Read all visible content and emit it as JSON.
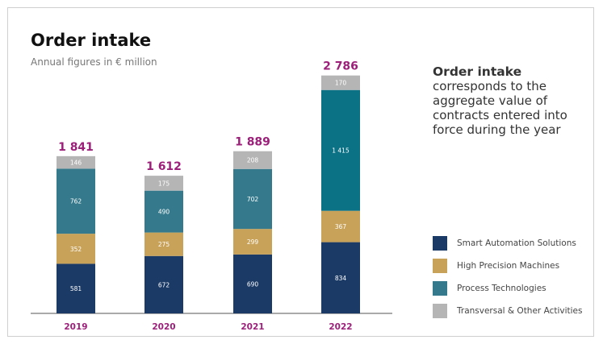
{
  "header": {
    "title": "Order intake",
    "subtitle": "Annual figures in € million"
  },
  "description": {
    "heading": "Order intake",
    "text": "corresponds to the aggregate value of contracts entered into force during the year"
  },
  "colors": {
    "Smart Automation Solutions": "#1b3a66",
    "High Precision Machines": "#c8a258",
    "Process Technologies": "#357a8c",
    "Transversal & Other Activities": "#b5b5b5",
    "Process Technologies 2022": "#0b7286",
    "totals": "#9c1f7a",
    "years": "#9c1f7a"
  },
  "chart_data": {
    "type": "bar",
    "stacked": true,
    "categories": [
      "2019",
      "2020",
      "2021",
      "2022"
    ],
    "totals": [
      "1 841",
      "1 612",
      "1 889",
      "2 786"
    ],
    "series": [
      {
        "name": "Smart Automation Solutions",
        "values": [
          581,
          672,
          690,
          834
        ]
      },
      {
        "name": "High Precision Machines",
        "values": [
          352,
          275,
          299,
          367
        ]
      },
      {
        "name": "Process Technologies",
        "values": [
          762,
          490,
          702,
          1415
        ]
      },
      {
        "name": "Transversal & Other Activities",
        "values": [
          146,
          175,
          208,
          170
        ]
      }
    ],
    "value_labels": [
      [
        "581",
        "672",
        "690",
        "834"
      ],
      [
        "352",
        "275",
        "299",
        "367"
      ],
      [
        "762",
        "490",
        "702",
        "1 415"
      ],
      [
        "146",
        "175",
        "208",
        "170"
      ]
    ],
    "legend_position": "bottom-right",
    "grid": false
  },
  "legend": {
    "items": [
      {
        "label": "Smart Automation Solutions",
        "color": "#1b3a66"
      },
      {
        "label": "High Precision Machines",
        "color": "#c8a258"
      },
      {
        "label": "Process Technologies",
        "color": "#357a8c"
      },
      {
        "label": "Transversal & Other Activities",
        "color": "#b5b5b5"
      }
    ]
  }
}
